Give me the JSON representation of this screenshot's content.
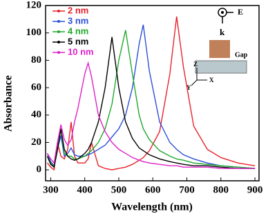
{
  "chart_data": {
    "type": "line",
    "xlabel": "Wavelength (nm)",
    "ylabel": "Absorbance",
    "x": [
      290,
      300,
      310,
      320,
      330,
      340,
      350,
      360,
      370,
      380,
      400,
      410,
      420,
      440,
      460,
      480,
      500,
      520,
      540,
      560,
      572,
      590,
      620,
      650,
      670,
      690,
      720,
      760,
      800,
      850,
      900
    ],
    "series": [
      {
        "name": "2 nm",
        "color": "#e8202a",
        "values": [
          5,
          2,
          0,
          20,
          10,
          8,
          15,
          35,
          10,
          5,
          5,
          8,
          20,
          3,
          1,
          0,
          1,
          2,
          4,
          7,
          9,
          14,
          28,
          70,
          112,
          75,
          32,
          15,
          9,
          5,
          3
        ]
      },
      {
        "name": "3 nm",
        "color": "#2a4fd8",
        "values": [
          12,
          6,
          3,
          15,
          25,
          10,
          12,
          16,
          11,
          10,
          10,
          11,
          12,
          15,
          18,
          24,
          30,
          40,
          60,
          92,
          106,
          72,
          35,
          20,
          15,
          11,
          8,
          5,
          3,
          2,
          1
        ]
      },
      {
        "name": "4 nm",
        "color": "#1fa82a",
        "values": [
          10,
          5,
          2,
          14,
          30,
          12,
          10,
          10,
          8,
          8,
          10,
          12,
          14,
          20,
          30,
          48,
          80,
          102,
          70,
          40,
          30,
          22,
          14,
          10,
          8,
          7,
          5,
          4,
          3,
          2,
          1
        ]
      },
      {
        "name": "5 nm",
        "color": "#000000",
        "values": [
          10,
          4,
          2,
          15,
          30,
          15,
          10,
          8,
          7,
          8,
          12,
          15,
          20,
          35,
          60,
          97,
          60,
          35,
          23,
          16,
          14,
          11,
          8,
          6,
          5,
          4,
          3,
          3,
          2,
          1,
          1
        ]
      },
      {
        "name": "10 nm",
        "color": "#e020c8",
        "values": [
          12,
          8,
          5,
          20,
          33,
          22,
          18,
          22,
          35,
          45,
          70,
          78,
          68,
          40,
          28,
          20,
          15,
          12,
          9,
          7,
          6,
          5,
          4,
          3,
          3,
          2,
          2,
          2,
          1,
          1,
          1
        ]
      }
    ],
    "xlim": [
      285,
      912
    ],
    "ylim": [
      -8,
      120
    ],
    "xticks": [
      300,
      400,
      500,
      600,
      700,
      800,
      900
    ],
    "yticks": [
      0,
      20,
      40,
      60,
      80,
      100,
      120
    ],
    "legend": "upper left",
    "inset_labels": [
      "E",
      "k",
      "Gap",
      "Z",
      "Y",
      "X"
    ]
  }
}
